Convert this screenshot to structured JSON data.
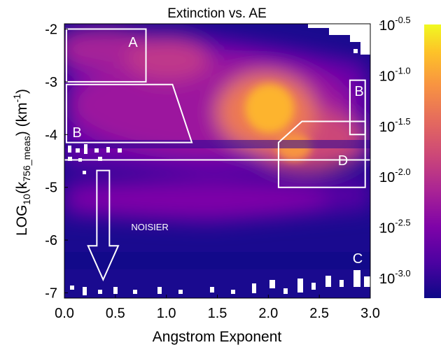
{
  "chart_data": {
    "type": "heatmap",
    "title": "Extinction vs. AE",
    "xlabel": "Angstrom Exponent",
    "ylabel": "LOG10(k756_meas) (km-1)",
    "ylabel_parts": {
      "main": "LOG",
      "sub": "10",
      "open": "(k",
      "sub2": "756_meas",
      "close": ") (km",
      "sup": "-1",
      "end": ")"
    },
    "xlim": [
      0.0,
      3.0
    ],
    "ylim": [
      -7.1,
      -1.9
    ],
    "xticks": [
      "0.0",
      "0.5",
      "1.0",
      "1.5",
      "2.0",
      "2.5",
      "3.0"
    ],
    "xtick_values": [
      0.0,
      0.5,
      1.0,
      1.5,
      2.0,
      2.5,
      3.0
    ],
    "yticks": [
      "-2",
      "-3",
      "-4",
      "-5",
      "-6",
      "-7"
    ],
    "ytick_values": [
      -2,
      -3,
      -4,
      -5,
      -6,
      -7
    ],
    "colorbar": {
      "scale": "log",
      "range_exponent": [
        -3.2,
        -0.5
      ],
      "tick_exponents": [
        "-0.5",
        "-1.0",
        "-1.5",
        "-2.0",
        "-2.5",
        "-3.0"
      ],
      "tick_values": [
        -0.5,
        -1.0,
        -1.5,
        -2.0,
        -2.5,
        -3.0
      ],
      "base": "10",
      "colormap": [
        "#0d0887",
        "#4c02a1",
        "#7e03a8",
        "#a92395",
        "#cc4778",
        "#e56b5d",
        "#f89441",
        "#fdc328",
        "#f0f921"
      ]
    },
    "density_peaks": [
      {
        "x": 2.0,
        "y": -3.55,
        "relative_density": 1.0
      },
      {
        "x": 1.0,
        "y": -2.7,
        "relative_density": 0.55
      },
      {
        "x": 2.3,
        "y": -4.2,
        "relative_density": 0.65
      },
      {
        "x": 0.4,
        "y": -2.4,
        "relative_density": 0.45
      },
      {
        "x": 1.5,
        "y": -5.3,
        "relative_density": 0.35
      }
    ],
    "regions": [
      {
        "label": "A",
        "polygon": [
          [
            0.02,
            -2.0
          ],
          [
            0.8,
            -2.0
          ],
          [
            0.8,
            -3.0
          ],
          [
            0.02,
            -3.0
          ]
        ]
      },
      {
        "label": "B",
        "polygon": [
          [
            0.02,
            -3.05
          ],
          [
            1.06,
            -3.05
          ],
          [
            1.25,
            -4.15
          ],
          [
            0.02,
            -4.15
          ]
        ]
      },
      {
        "label": "B",
        "polygon": [
          [
            2.8,
            -2.97
          ],
          [
            2.95,
            -2.97
          ],
          [
            2.95,
            -4.0
          ],
          [
            2.8,
            -4.0
          ]
        ]
      },
      {
        "label": "D",
        "polygon": [
          [
            2.33,
            -3.75
          ],
          [
            2.95,
            -3.75
          ],
          [
            2.95,
            -5.0
          ],
          [
            2.1,
            -5.0
          ],
          [
            2.1,
            -4.15
          ]
        ]
      },
      {
        "label": "C",
        "polygon": []
      }
    ],
    "reference_line_y": -4.48,
    "arrow_label": "NOISIER",
    "arrow": {
      "x": 0.38,
      "y_start": -4.68,
      "y_end": -6.75
    }
  }
}
